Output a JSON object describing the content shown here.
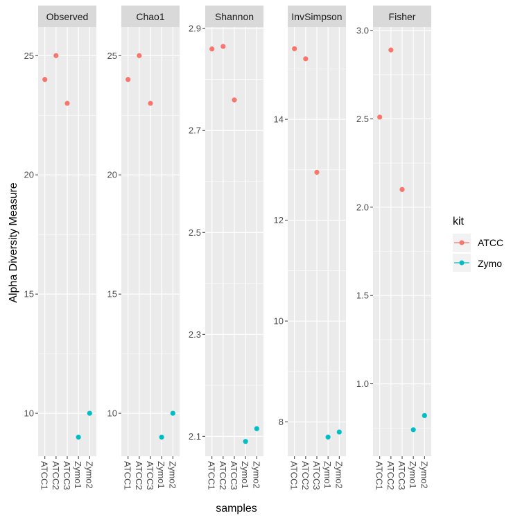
{
  "chart_data": {
    "type": "scatter",
    "xlabel": "samples",
    "ylabel": "Alpha Diversity Measure",
    "categories": [
      "ATCC1",
      "ATCC2",
      "ATCC3",
      "Zymo1",
      "Zymo2"
    ],
    "legend": {
      "title": "kit",
      "placement": "right",
      "items": [
        {
          "name": "ATCC",
          "color": "#F8766D"
        },
        {
          "name": "Zymo",
          "color": "#00BFC4"
        }
      ]
    },
    "point_kit": [
      "ATCC",
      "ATCC",
      "ATCC",
      "Zymo",
      "Zymo"
    ],
    "grid": true,
    "panels": [
      {
        "title": "Observed",
        "ylim": [
          8.2,
          26.2
        ],
        "yticks": [
          10,
          15,
          20,
          25
        ],
        "yticklabels": [
          "10",
          "15",
          "20",
          "25"
        ],
        "values": [
          24,
          25,
          23,
          9,
          10
        ]
      },
      {
        "title": "Chao1",
        "ylim": [
          8.2,
          26.2
        ],
        "yticks": [
          10,
          15,
          20,
          25
        ],
        "yticklabels": [
          "10",
          "15",
          "20",
          "25"
        ],
        "values": [
          24,
          25,
          23,
          9,
          10
        ]
      },
      {
        "title": "Shannon",
        "ylim": [
          2.061,
          2.903
        ],
        "yticks": [
          2.1,
          2.3,
          2.5,
          2.7,
          2.9
        ],
        "yticklabels": [
          "2.1",
          "2.3",
          "2.5",
          "2.7",
          "2.9"
        ],
        "values": [
          2.86,
          2.865,
          2.76,
          2.09,
          2.115
        ]
      },
      {
        "title": "InvSimpson",
        "ylim": [
          7.32,
          15.83
        ],
        "yticks": [
          8,
          10,
          12,
          14
        ],
        "yticklabels": [
          "8",
          "10",
          "12",
          "14"
        ],
        "values": [
          15.4,
          15.2,
          12.95,
          7.7,
          7.8
        ]
      },
      {
        "title": "Fisher",
        "ylim": [
          0.59,
          3.02
        ],
        "yticks": [
          1.0,
          1.5,
          2.0,
          2.5,
          3.0
        ],
        "yticklabels": [
          "1.0",
          "1.5",
          "2.0",
          "2.5",
          "3.0"
        ],
        "values": [
          2.51,
          2.89,
          2.1,
          0.74,
          0.82
        ]
      }
    ]
  }
}
